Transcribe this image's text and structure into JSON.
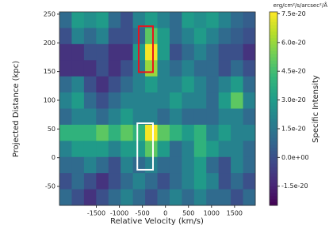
{
  "chart_data": {
    "type": "heatmap",
    "xlabel": "Relative Velocity (km/s)",
    "ylabel": "Projected Distance (kpc)",
    "colorbar_label": "Specific Intensity",
    "colorbar_unit": "erg/cm²/s/arcsec²/Å",
    "colormap": "viridis",
    "xlim": [
      -2300,
      1950
    ],
    "ylim": [
      -83,
      254
    ],
    "xticks": [
      -1500,
      -1000,
      -500,
      0,
      500,
      1000,
      1500
    ],
    "yticks": [
      -50,
      0,
      50,
      100,
      150,
      200,
      250
    ],
    "clim": [
      -2.5e-20,
      7.6e-20
    ],
    "cticks": [
      {
        "value": -1.5e-20,
        "label": "-1.5e-20"
      },
      {
        "value": 0,
        "label": "0.0e+00"
      },
      {
        "value": 1.5e-20,
        "label": "1.5e-20"
      },
      {
        "value": 3e-20,
        "label": "3.0e-20"
      },
      {
        "value": 4.5e-20,
        "label": "4.5e-20"
      },
      {
        "value": 6e-20,
        "label": "6.0e-20"
      },
      {
        "value": 7.5e-20,
        "label": "7.5e-20"
      }
    ],
    "z": [
      [
        1e-20,
        3e-20,
        2.5e-20,
        3e-20,
        1e-20,
        0,
        2e-20,
        3e-20,
        2e-20,
        1e-20,
        3e-20,
        2.5e-20,
        3e-20,
        2e-20,
        1e-20,
        5e-21
      ],
      [
        0,
        2e-20,
        1e-20,
        2e-20,
        0,
        0,
        1e-20,
        5e-20,
        3e-20,
        1e-20,
        2e-20,
        3e-20,
        2e-20,
        1e-20,
        5e-21,
        0
      ],
      [
        -1e-20,
        -1e-20,
        0,
        0,
        -1e-20,
        -1e-20,
        3e-20,
        7.5e-20,
        3e-20,
        0,
        1e-20,
        2e-20,
        1e-20,
        0,
        0,
        -1e-20
      ],
      [
        -1e-20,
        -1e-20,
        -1e-20,
        0,
        -1e-20,
        0,
        2e-20,
        6e-20,
        2e-20,
        1e-20,
        2e-20,
        1e-20,
        1e-20,
        0,
        1e-20,
        0
      ],
      [
        1e-20,
        2e-20,
        0,
        -1e-20,
        0,
        1e-20,
        2e-20,
        3e-20,
        2e-20,
        2e-20,
        3e-20,
        2e-20,
        1e-20,
        2e-20,
        3e-20,
        1e-20
      ],
      [
        2e-20,
        3e-20,
        1e-20,
        0,
        1e-20,
        2e-20,
        2e-20,
        2e-20,
        2e-20,
        3e-20,
        2e-20,
        2e-20,
        1e-20,
        3e-20,
        5e-20,
        2e-20
      ],
      [
        1e-20,
        2e-20,
        2e-20,
        1e-20,
        2e-20,
        3e-20,
        2e-20,
        2e-20,
        1e-20,
        2e-20,
        1e-20,
        1e-20,
        1e-20,
        2e-20,
        2e-20,
        1e-20
      ],
      [
        4e-20,
        4e-20,
        4e-20,
        5e-20,
        4e-20,
        5e-20,
        4e-20,
        7.5e-20,
        5e-20,
        4e-20,
        3e-20,
        4e-20,
        2e-20,
        3e-20,
        2e-20,
        2e-20
      ],
      [
        2e-20,
        3e-20,
        3e-20,
        3e-20,
        2e-20,
        3e-20,
        3e-20,
        5e-20,
        3e-20,
        1e-20,
        2e-20,
        4e-20,
        3e-20,
        2e-20,
        2e-20,
        1e-20
      ],
      [
        1e-20,
        1e-20,
        2e-20,
        1e-20,
        0,
        2e-20,
        1e-20,
        2e-20,
        1e-20,
        1e-20,
        2e-20,
        3e-20,
        1e-20,
        0,
        2e-20,
        1e-20
      ],
      [
        0,
        1e-20,
        0,
        -1e-20,
        0,
        1e-20,
        2e-20,
        1e-20,
        0,
        1e-20,
        2e-20,
        3e-20,
        2e-20,
        0,
        1e-20,
        0
      ],
      [
        1e-20,
        0,
        -1e-20,
        0,
        1e-20,
        2e-20,
        1e-20,
        0,
        1e-20,
        2e-20,
        1e-20,
        2e-20,
        1e-20,
        1e-20,
        0,
        1e-20
      ]
    ],
    "boxes": [
      {
        "x": [
          -580,
          -270
        ],
        "y": [
          149,
          229
        ],
        "color": "#e8141e"
      },
      {
        "x": [
          -610,
          -270
        ],
        "y": [
          -21,
          60
        ],
        "color": "#ffffff"
      }
    ]
  }
}
